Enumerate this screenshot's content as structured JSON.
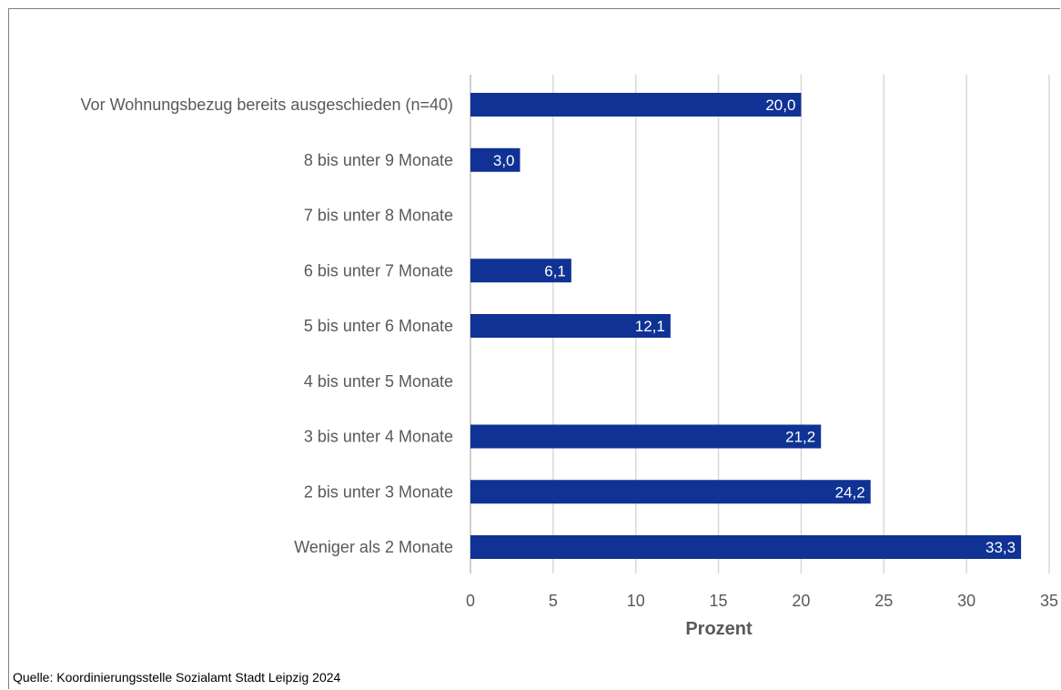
{
  "chart_data": {
    "type": "bar",
    "orientation": "horizontal",
    "categories": [
      "Vor Wohnungsbezug bereits ausgeschieden (n=40)",
      "8 bis unter 9 Monate",
      "7 bis unter 8 Monate",
      "6 bis unter 7 Monate",
      "5 bis unter 6 Monate",
      "4 bis unter 5 Monate",
      "3 bis unter 4 Monate",
      "2 bis unter 3 Monate",
      "Weniger als 2 Monate"
    ],
    "values": [
      20.0,
      3.0,
      null,
      6.1,
      12.1,
      null,
      21.2,
      24.2,
      33.3
    ],
    "data_labels": [
      "20,0",
      "3,0",
      "",
      "6,1",
      "12,1",
      "",
      "21,2",
      "24,2",
      "33,3"
    ],
    "xlabel": "Prozent",
    "xlim": [
      0,
      35
    ],
    "xticks": [
      0,
      5,
      10,
      15,
      20,
      25,
      30,
      35
    ],
    "xtick_labels": [
      "0",
      "5",
      "10",
      "15",
      "20",
      "25",
      "30",
      "35"
    ],
    "grid": "vertical",
    "legend": "none",
    "bar_color": "#0f3294",
    "grid_color": "#d9d9d9",
    "text_color": "#595959"
  },
  "source_note": "Quelle: Koordinierungsstelle Sozialamt Stadt Leipzig 2024"
}
